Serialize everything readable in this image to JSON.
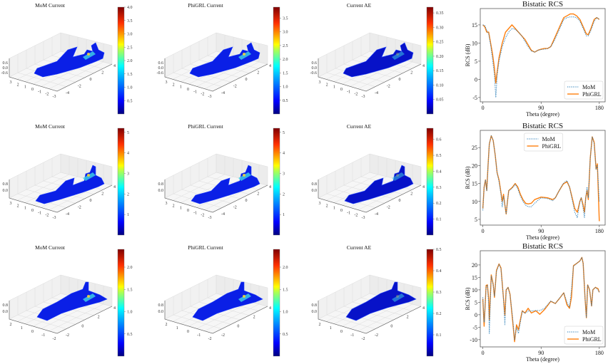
{
  "colors": {
    "mom": "#1f77b4",
    "phigrl": "#ff7f0e",
    "surface": "#0a1fe6"
  },
  "chart_data": [
    {
      "type": "3d-surface",
      "title": "MoM Current",
      "colorbar_range": [
        0,
        4.0
      ],
      "colorbar_ticks": [
        "0.5",
        "1.0",
        "1.5",
        "2.0",
        "2.5",
        "3.0",
        "3.5",
        "4.0"
      ],
      "x_ticks": [
        "3",
        "2",
        "1",
        "0",
        "-1",
        "-2",
        "-3"
      ],
      "y_ticks": [
        "-4",
        "-2",
        "0",
        "2",
        "4"
      ],
      "z_ticks": [
        "0.6",
        "0.0",
        "-0.6"
      ],
      "shape": "fighter"
    },
    {
      "type": "3d-surface",
      "title": "PhiGRL Current",
      "colorbar_range": [
        0,
        3.9
      ],
      "colorbar_ticks": [
        "0.5",
        "1.0",
        "1.5",
        "2.0",
        "2.5",
        "3.0",
        "3.5"
      ],
      "x_ticks": [
        "3",
        "2",
        "1",
        "0",
        "-1",
        "-2",
        "-3"
      ],
      "y_ticks": [
        "-4",
        "-2",
        "0",
        "2",
        "4"
      ],
      "z_ticks": [
        "0.6",
        "0.0",
        "-0.6"
      ],
      "shape": "fighter"
    },
    {
      "type": "3d-surface",
      "title": "Current AE",
      "colorbar_range": [
        0,
        0.37
      ],
      "colorbar_ticks": [
        "0.05",
        "0.10",
        "0.15",
        "0.20",
        "0.25",
        "0.30",
        "0.35"
      ],
      "x_ticks": [
        "3",
        "2",
        "1",
        "0",
        "-1",
        "-2",
        "-3"
      ],
      "y_ticks": [
        "-4",
        "-2",
        "0",
        "2",
        "4"
      ],
      "z_ticks": [
        "0.6",
        "0.0",
        "-0.6"
      ],
      "shape": "fighter"
    },
    {
      "type": "3d-surface",
      "title": "MoM Current",
      "colorbar_range": [
        0,
        5.2
      ],
      "colorbar_ticks": [
        "1",
        "2",
        "3",
        "4",
        "5"
      ],
      "x_ticks": [
        "3",
        "2",
        "1",
        "0",
        "-1",
        "-2",
        "-3"
      ],
      "y_ticks": [
        "-4",
        "-2",
        "0",
        "2",
        "4"
      ],
      "z_ticks": [
        "0.8",
        "0.0"
      ],
      "shape": "jet"
    },
    {
      "type": "3d-surface",
      "title": "PhiGRL Current",
      "colorbar_range": [
        0,
        5.2
      ],
      "colorbar_ticks": [
        "1",
        "2",
        "3",
        "4",
        "5"
      ],
      "x_ticks": [
        "3",
        "2",
        "1",
        "0",
        "-1",
        "-2",
        "-3"
      ],
      "y_ticks": [
        "-4",
        "-2",
        "0",
        "2",
        "4"
      ],
      "z_ticks": [
        "0.8",
        "0.0"
      ],
      "shape": "jet"
    },
    {
      "type": "3d-surface",
      "title": "Current AE",
      "colorbar_range": [
        0,
        0.67
      ],
      "colorbar_ticks": [
        "0.1",
        "0.2",
        "0.3",
        "0.4",
        "0.5",
        "0.6"
      ],
      "x_ticks": [
        "3",
        "2",
        "1",
        "0",
        "-1",
        "-2",
        "-3"
      ],
      "y_ticks": [
        "-4",
        "-2",
        "0",
        "2",
        "4"
      ],
      "z_ticks": [
        "0.8",
        "0.0"
      ],
      "shape": "jet"
    },
    {
      "type": "3d-surface",
      "title": "MoM Current",
      "colorbar_range": [
        0,
        2.4
      ],
      "colorbar_ticks": [
        "0.5",
        "1.0",
        "1.5",
        "2.0"
      ],
      "x_ticks": [
        "2",
        "1",
        "0",
        "-1",
        "-2"
      ],
      "y_ticks": [
        "-2",
        "0",
        "2",
        "4"
      ],
      "z_ticks": [
        "0.8",
        "0.0"
      ],
      "shape": "shuttle"
    },
    {
      "type": "3d-surface",
      "title": "PhiGRL Current",
      "colorbar_range": [
        0,
        2.4
      ],
      "colorbar_ticks": [
        "0.5",
        "1.0",
        "1.5",
        "2.0"
      ],
      "x_ticks": [
        "2",
        "1",
        "0",
        "-1",
        "-2"
      ],
      "y_ticks": [
        "-2",
        "0",
        "2",
        "4"
      ],
      "z_ticks": [
        "0.8",
        "0.0"
      ],
      "shape": "shuttle"
    },
    {
      "type": "3d-surface",
      "title": "Current AE",
      "colorbar_range": [
        0,
        0.5
      ],
      "colorbar_ticks": [
        "0.1",
        "0.2",
        "0.3",
        "0.4",
        "0.5"
      ],
      "x_ticks": [
        "2",
        "1",
        "0",
        "-1",
        "-2"
      ],
      "y_ticks": [
        "-2",
        "0",
        "2",
        "4"
      ],
      "z_ticks": [
        "0.8",
        "0.0"
      ],
      "shape": "shuttle"
    },
    {
      "type": "line",
      "title": "Bistatic RCS",
      "xlabel": "Theta (degree)",
      "ylabel": "RCS (dB)",
      "xlim": [
        -4,
        189
      ],
      "ylim": [
        -6.2,
        19.5
      ],
      "x_ticks": [
        0,
        90,
        180
      ],
      "y_ticks": [
        -5,
        0,
        5,
        10,
        15
      ],
      "legend": "lower-right",
      "series": [
        {
          "name": "MoM",
          "style": "dotted",
          "x": [
            0,
            3,
            6,
            9,
            12,
            15,
            18,
            20,
            22,
            25,
            30,
            35,
            40,
            45,
            50,
            55,
            60,
            65,
            70,
            75,
            80,
            85,
            90,
            95,
            100,
            105,
            110,
            115,
            120,
            125,
            130,
            135,
            140,
            145,
            150,
            155,
            160,
            163,
            167,
            172,
            176,
            180
          ],
          "y": [
            15,
            14.8,
            13.5,
            12.5,
            9.5,
            5.5,
            1,
            -5,
            1,
            5,
            9,
            11.5,
            13,
            14,
            13.8,
            13,
            12,
            10.5,
            9,
            7.8,
            7.5,
            8,
            8.2,
            8.3,
            8.5,
            9,
            10.5,
            12.5,
            14.5,
            16.5,
            17,
            17.2,
            17.2,
            17,
            16,
            14,
            12,
            12,
            13.5,
            16,
            17,
            16.5
          ]
        },
        {
          "name": "PhiGRL",
          "style": "solid",
          "x": [
            0,
            3,
            6,
            9,
            12,
            15,
            18,
            20,
            22,
            25,
            30,
            35,
            40,
            45,
            50,
            55,
            60,
            65,
            70,
            75,
            80,
            85,
            90,
            95,
            100,
            105,
            110,
            115,
            120,
            125,
            130,
            135,
            140,
            145,
            150,
            155,
            160,
            163,
            167,
            172,
            176,
            180
          ],
          "y": [
            15,
            14.5,
            13,
            13,
            10,
            7,
            3,
            -1,
            2,
            6,
            10,
            13,
            14,
            15,
            14,
            13,
            12,
            11,
            9.5,
            8,
            7.5,
            8,
            8.3,
            8.5,
            8.5,
            9,
            11,
            13,
            15,
            17,
            17.5,
            18,
            18,
            17.5,
            16.5,
            14.5,
            12.5,
            12.3,
            14,
            16.5,
            17,
            16.5
          ]
        }
      ]
    },
    {
      "type": "line",
      "title": "Bistatic RCS",
      "xlabel": "Theta (degree)",
      "ylabel": "RCS (dB)",
      "xlim": [
        -4,
        189
      ],
      "ylim": [
        3.4,
        29.8
      ],
      "x_ticks": [
        0,
        90,
        180
      ],
      "y_ticks": [
        5,
        10,
        15,
        20,
        25
      ],
      "legend": "upper-center",
      "series": [
        {
          "name": "MoM",
          "style": "dotted",
          "x": [
            0,
            2,
            4,
            6,
            8,
            10,
            13,
            16,
            19,
            22,
            25,
            28,
            30,
            32,
            34,
            36,
            38,
            40,
            43,
            46,
            50,
            54,
            58,
            62,
            66,
            70,
            75,
            80,
            90,
            100,
            108,
            112,
            118,
            124,
            130,
            134,
            138,
            142,
            146,
            150,
            152,
            155,
            157,
            159,
            161,
            163,
            166,
            169,
            172,
            175,
            177,
            180
          ],
          "y": [
            7.5,
            14,
            16,
            13,
            20,
            26,
            28.3,
            27,
            23,
            18,
            15.5,
            12,
            8.5,
            11.5,
            9,
            6.5,
            10,
            13,
            13.3,
            13.8,
            14.8,
            13.5,
            11.5,
            10,
            9,
            8.5,
            8.5,
            9.5,
            11,
            10.8,
            10.2,
            11,
            13,
            15,
            15.8,
            14,
            10.5,
            7,
            5.5,
            10,
            11,
            8,
            5.5,
            11,
            14,
            11,
            22,
            28,
            26,
            19,
            20,
            10
          ]
        },
        {
          "name": "PhiGRL",
          "style": "solid",
          "x": [
            0,
            2,
            4,
            6,
            8,
            10,
            13,
            16,
            19,
            22,
            25,
            28,
            30,
            32,
            34,
            36,
            38,
            40,
            43,
            46,
            50,
            54,
            58,
            62,
            66,
            70,
            75,
            80,
            90,
            100,
            108,
            112,
            118,
            124,
            130,
            134,
            138,
            142,
            146,
            150,
            152,
            155,
            157,
            159,
            161,
            163,
            166,
            169,
            172,
            175,
            177,
            180
          ],
          "y": [
            8,
            14,
            16,
            13,
            20,
            26,
            28.3,
            27,
            23,
            18,
            16,
            12.5,
            10,
            12,
            9,
            6.5,
            10,
            13,
            13.5,
            14,
            15,
            14,
            12,
            10.5,
            9.5,
            9.3,
            9.5,
            10.5,
            11.2,
            11,
            10.5,
            11,
            13,
            14.8,
            15.5,
            14,
            11,
            8,
            7,
            10,
            11,
            9,
            7,
            11,
            13,
            10.5,
            22,
            28,
            26.5,
            19,
            20.5,
            4.5
          ]
        }
      ]
    },
    {
      "type": "line",
      "title": "Bistatic RCS",
      "xlabel": "Theta (degree)",
      "ylabel": "RCS (dB)",
      "xlim": [
        -4,
        189
      ],
      "ylim": [
        -12.9,
        25.7
      ],
      "x_ticks": [
        0,
        90,
        180
      ],
      "y_ticks": [
        -10,
        -5,
        0,
        5,
        10,
        15,
        20
      ],
      "legend": "lower-right",
      "series": [
        {
          "name": "MoM",
          "style": "dotted",
          "x": [
            0,
            2,
            5,
            7,
            9,
            10,
            13,
            16,
            18,
            21,
            25,
            28,
            32,
            34,
            36,
            39,
            42,
            46,
            49,
            52,
            55,
            58,
            61,
            65,
            70,
            75,
            82,
            88,
            95,
            105,
            112,
            118,
            125,
            130,
            134,
            137,
            140,
            145,
            150,
            153,
            155,
            158,
            160,
            162,
            165,
            168,
            170,
            174,
            178,
            180
          ],
          "y": [
            7,
            -3,
            11,
            12,
            4,
            -7.5,
            15.5,
            12,
            7.5,
            17.5,
            20.2,
            18.5,
            6,
            -4,
            10,
            11,
            8,
            -1,
            -10,
            -5,
            -7.5,
            -3,
            1.5,
            0.5,
            1.5,
            1.5,
            1.7,
            1.7,
            2.5,
            5.5,
            4.5,
            6.5,
            8.8,
            5,
            3,
            10,
            19.5,
            20.6,
            21.6,
            23,
            20.6,
            6.4,
            -1,
            12,
            10,
            3.5,
            10,
            11,
            10,
            9
          ]
        },
        {
          "name": "PhiGRL",
          "style": "solid",
          "x": [
            0,
            2,
            5,
            7,
            9,
            10,
            13,
            16,
            18,
            21,
            25,
            28,
            32,
            34,
            36,
            39,
            42,
            46,
            49,
            52,
            55,
            58,
            61,
            65,
            70,
            75,
            82,
            88,
            95,
            105,
            112,
            118,
            125,
            130,
            134,
            137,
            140,
            145,
            150,
            153,
            155,
            158,
            160,
            162,
            165,
            168,
            170,
            174,
            178,
            180
          ],
          "y": [
            6.4,
            -4.6,
            11.8,
            12,
            6.4,
            -2,
            16,
            12.3,
            7,
            17.8,
            20.4,
            18.8,
            6.4,
            -0.3,
            10,
            11,
            8.3,
            -2.2,
            -10.8,
            -4,
            -6,
            -2,
            1.6,
            0.7,
            2.6,
            0.7,
            1.6,
            0.2,
            2,
            5.4,
            4.5,
            6.4,
            8.8,
            4,
            2.6,
            7,
            19.7,
            20.6,
            21.6,
            23,
            20.6,
            6.4,
            -1.2,
            12,
            10,
            3.5,
            10,
            11,
            10.5,
            9
          ]
        }
      ]
    }
  ]
}
